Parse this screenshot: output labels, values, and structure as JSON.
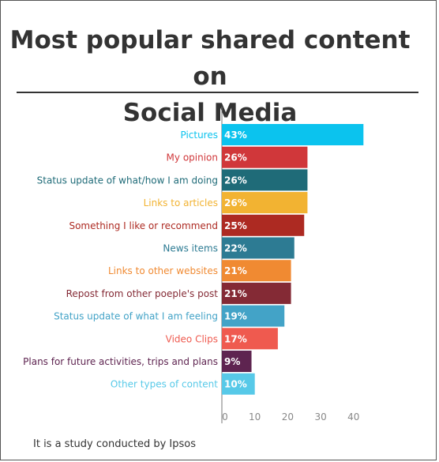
{
  "page": {
    "title_line1": "Most popular shared content on",
    "title_line2": "Social Media",
    "footer": "It is a study conducted by Ipsos"
  },
  "chart_data": {
    "type": "bar",
    "orientation": "horizontal",
    "categories": [
      "Pictures",
      "My opinion",
      "Status update of what/how I am doing",
      "Links to articles",
      "Something I like or recommend",
      "News items",
      "Links to other websites",
      "Repost from other poeple's post",
      "Status update of what I am feeling",
      "Video Clips",
      "Plans for future activities, trips and plans",
      "Other types of content"
    ],
    "values": [
      43,
      26,
      26,
      26,
      25,
      22,
      21,
      21,
      19,
      17,
      9,
      10
    ],
    "value_labels": [
      "43%",
      "26%",
      "26%",
      "26%",
      "25%",
      "22%",
      "21%",
      "21%",
      "19%",
      "17%",
      "9%",
      "10%"
    ],
    "colors": [
      "#0bc3ee",
      "#d0373a",
      "#1f6b78",
      "#f2b332",
      "#ad2a22",
      "#2d7b93",
      "#f08a32",
      "#842a35",
      "#43a3c7",
      "#ef5a4f",
      "#5e2450",
      "#57c9e8"
    ],
    "xticks": [
      0,
      10,
      20,
      30,
      40
    ],
    "xlim": [
      0,
      44
    ],
    "title": "Most popular shared content on Social Media",
    "xlabel": "",
    "ylabel": "",
    "grid": false,
    "legend": "none"
  }
}
